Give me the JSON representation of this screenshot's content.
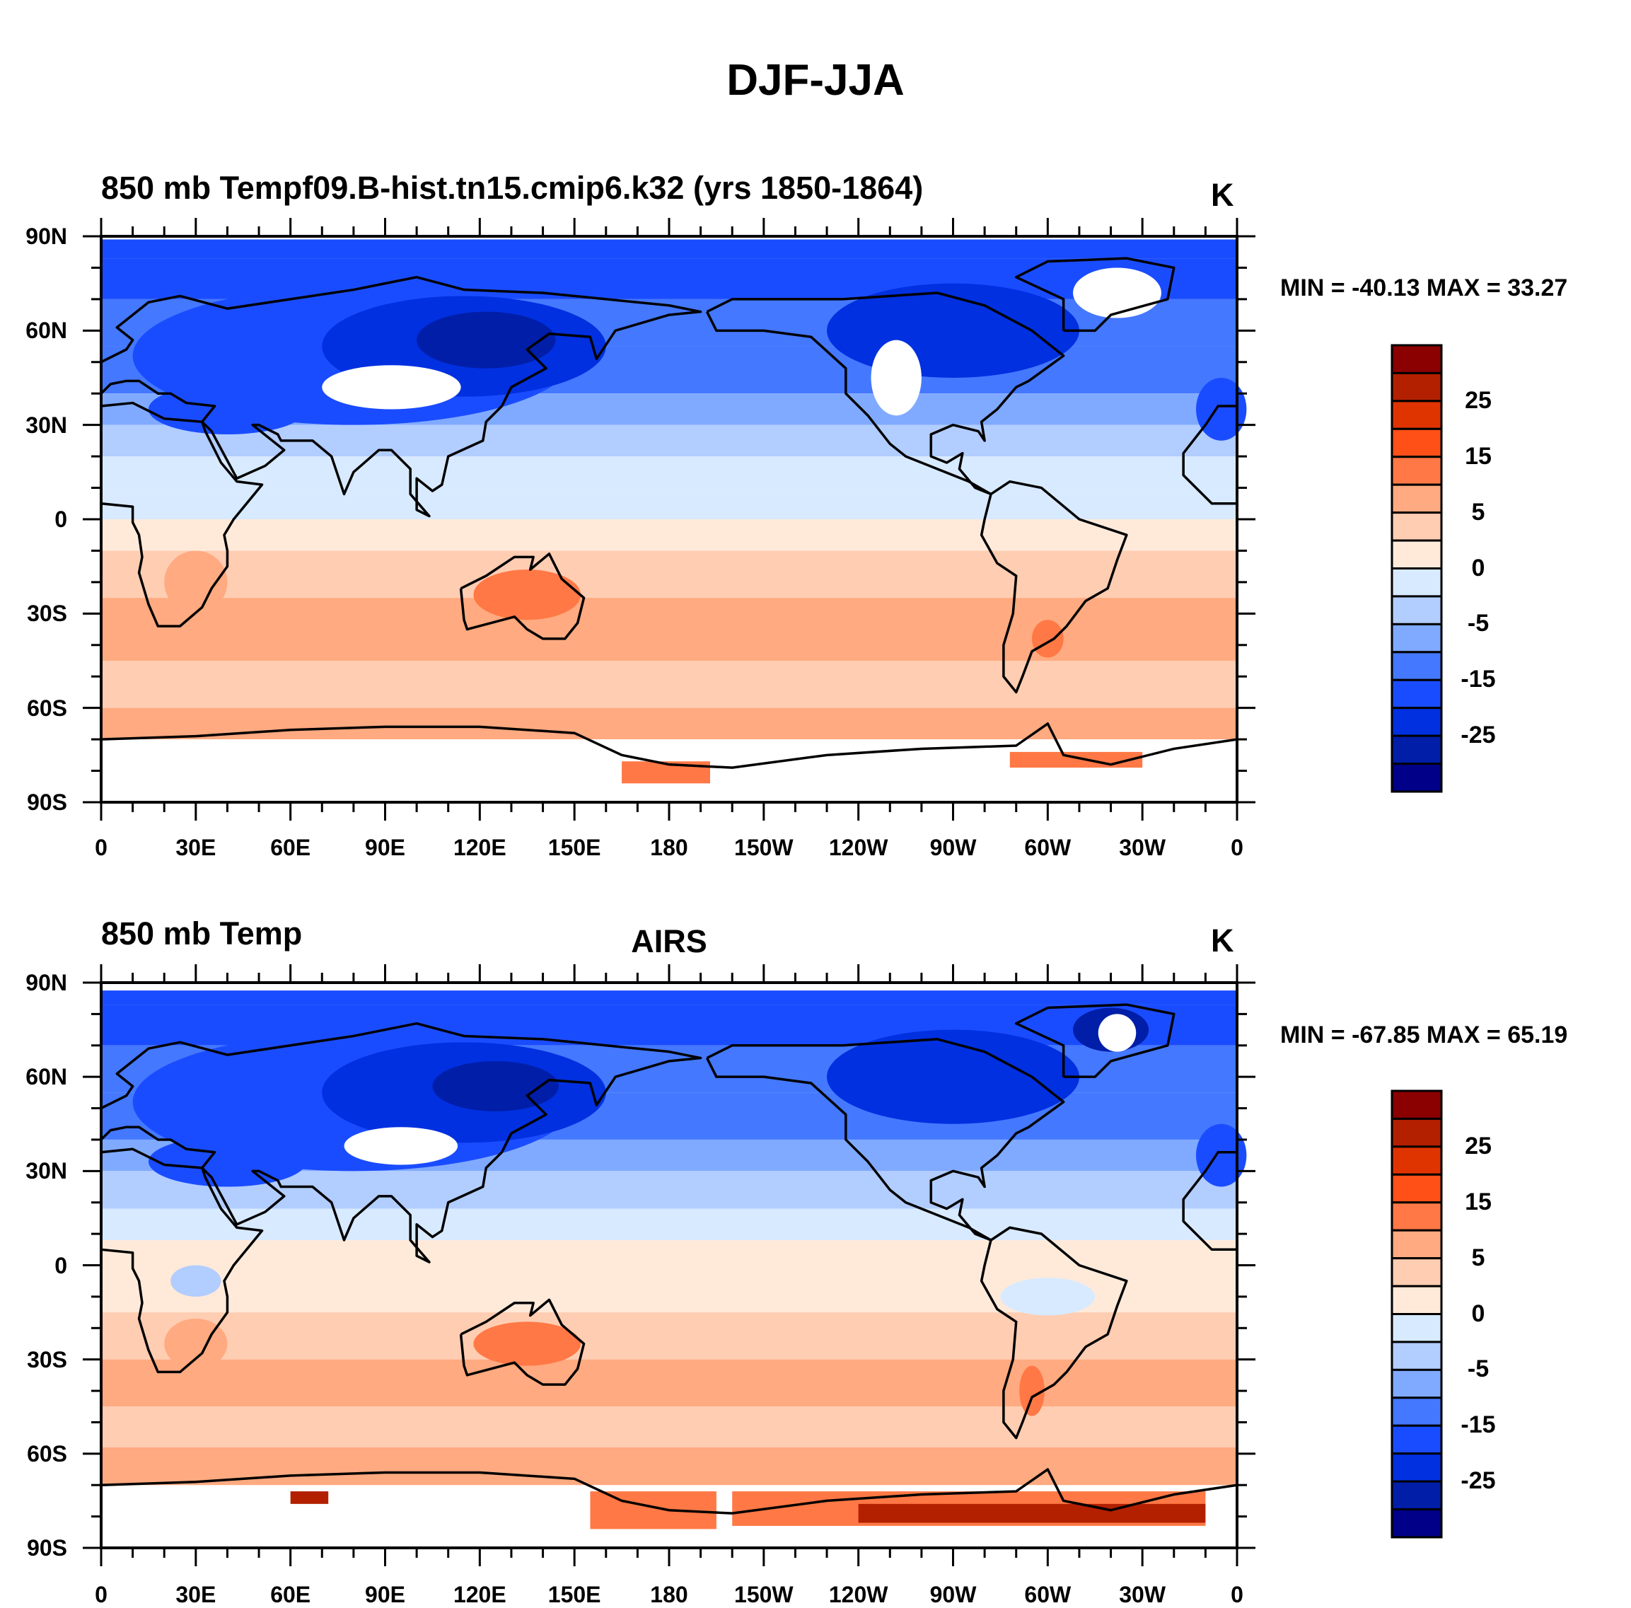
{
  "title": "DJF-JJA",
  "colors": [
    "#000088",
    "#001ea8",
    "#0030e0",
    "#1a4cff",
    "#4478ff",
    "#80aaff",
    "#b2cdff",
    "#d8eaff",
    "#ffeada",
    "#ffcdb2",
    "#ffaa80",
    "#ff7845",
    "#ff5018",
    "#e03400",
    "#b22000",
    "#8b0000"
  ],
  "chart_data": [
    {
      "type": "heatmap",
      "title": "850 mb Tempf09.B-hist.tn15.cmip6.k32 (yrs 1850-1864)",
      "center_title": "",
      "units": "K",
      "min_max": "MIN = -40.13 MAX =  33.27",
      "x_ticks": [
        "0",
        "30E",
        "60E",
        "90E",
        "120E",
        "150E",
        "180",
        "150W",
        "120W",
        "90W",
        "60W",
        "30W",
        "0"
      ],
      "y_ticks": [
        "90N",
        "60N",
        "30N",
        "0",
        "30S",
        "60S",
        "90S"
      ],
      "colorbar_labels": [
        "25",
        "15",
        "5",
        "0",
        "-5",
        "-15",
        "-25"
      ],
      "zonal_bins": [
        [
          90,
          83,
          3
        ],
        [
          83,
          70,
          3
        ],
        [
          70,
          55,
          4
        ],
        [
          55,
          40,
          4
        ],
        [
          40,
          30,
          5
        ],
        [
          30,
          20,
          6
        ],
        [
          20,
          8,
          7
        ],
        [
          8,
          0,
          7
        ],
        [
          0,
          -10,
          8
        ],
        [
          -10,
          -25,
          9
        ],
        [
          -25,
          -45,
          10
        ],
        [
          -45,
          -60,
          9
        ],
        [
          -60,
          -70,
          10
        ]
      ]
    },
    {
      "type": "heatmap",
      "title": "850 mb Temp",
      "center_title": "AIRS",
      "units": "K",
      "min_max": "MIN = -67.85 MAX =  65.19",
      "x_ticks": [
        "0",
        "30E",
        "60E",
        "90E",
        "120E",
        "150E",
        "180",
        "150W",
        "120W",
        "90W",
        "60W",
        "30W",
        "0"
      ],
      "y_ticks": [
        "90N",
        "60N",
        "30N",
        "0",
        "30S",
        "60S",
        "90S"
      ],
      "colorbar_labels": [
        "25",
        "15",
        "5",
        "0",
        "-5",
        "-15",
        "-25"
      ],
      "zonal_bins": [
        [
          90,
          83,
          3
        ],
        [
          83,
          70,
          3
        ],
        [
          70,
          55,
          4
        ],
        [
          55,
          40,
          4
        ],
        [
          40,
          30,
          5
        ],
        [
          30,
          18,
          6
        ],
        [
          18,
          8,
          7
        ],
        [
          8,
          0,
          8
        ],
        [
          0,
          -15,
          8
        ],
        [
          -15,
          -30,
          9
        ],
        [
          -30,
          -45,
          10
        ],
        [
          -45,
          -58,
          9
        ],
        [
          -58,
          -70,
          10
        ]
      ]
    }
  ]
}
